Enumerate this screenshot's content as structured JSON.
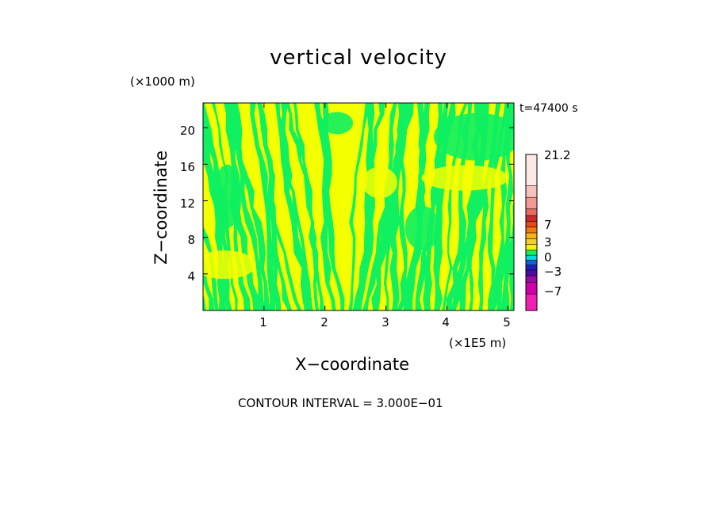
{
  "chart_data": {
    "type": "heatmap",
    "title": "vertical velocity",
    "xlabel": "X−coordinate",
    "ylabel": "Z−coordinate",
    "x_unit_label": "(×1E5 m)",
    "z_unit_label": "(×1000 m)",
    "time_label": "t=47400 s",
    "contour_interval_label": "CONTOUR INTERVAL = 3.000E−01",
    "xlim": [
      0,
      5.1
    ],
    "ylim": [
      0,
      22.7
    ],
    "x_ticks": [
      1,
      2,
      3,
      4,
      5
    ],
    "y_ticks": [
      4,
      8,
      12,
      16,
      20
    ],
    "x_tick_labels": [
      "1",
      "2",
      "3",
      "4",
      "5"
    ],
    "y_tick_labels": [
      "4",
      "8",
      "12",
      "16",
      "20"
    ],
    "fill_values": [
      "positive (yellow)",
      "negative (green)"
    ],
    "colorbar": {
      "labels": [
        "21.2",
        "7",
        "3",
        "0",
        "−3",
        "−7"
      ],
      "segments": [
        {
          "color": "#fce8e4"
        },
        {
          "color": "#f6c2bc"
        },
        {
          "color": "#f29a94"
        },
        {
          "color": "#e86a62"
        },
        {
          "color": "#cc2a28"
        },
        {
          "color": "#e84a1a"
        },
        {
          "color": "#f07a10"
        },
        {
          "color": "#f8b21c"
        },
        {
          "color": "#f2d21e"
        },
        {
          "color": "#f4f400"
        },
        {
          "color": "#10f060"
        },
        {
          "color": "#00dcdc"
        },
        {
          "color": "#1060d8"
        },
        {
          "color": "#1a20c0"
        },
        {
          "color": "#4a0aa0"
        },
        {
          "color": "#9a0aa6"
        },
        {
          "color": "#d000a8"
        },
        {
          "color": "#f020b4"
        }
      ]
    },
    "colors": {
      "positive": "#f4ff00",
      "negative": "#10f060"
    }
  }
}
